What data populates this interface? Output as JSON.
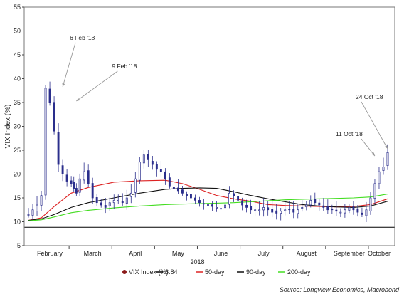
{
  "chart_data": {
    "type": "line",
    "title": "",
    "ylabel": "VIX Index (%)",
    "ylim": [
      5,
      55
    ],
    "yticks": [
      "5",
      "10",
      "15",
      "20",
      "25",
      "30",
      "35",
      "40",
      "45",
      "50",
      "55"
    ],
    "x_axis_year_label": "2018",
    "month_labels": [
      "February",
      "March",
      "April",
      "May",
      "June",
      "July",
      "August",
      "September",
      "October"
    ],
    "reference_line": {
      "name": "8.84",
      "value": 8.84,
      "color": "#000000"
    },
    "candle_color": "#2b2e8c",
    "series": [
      {
        "name": "VIX Index (%)",
        "color": "#2b2e8c",
        "x": [
          0.0,
          0.5,
          1.0,
          1.5,
          2.0,
          2.5,
          3.0,
          3.5,
          4.0,
          4.5,
          5.0,
          5.3,
          5.6,
          6.0,
          6.5,
          7.0,
          7.5,
          8.0,
          8.5,
          9.0,
          9.5,
          10.0,
          10.5,
          11.0,
          11.5,
          12.0,
          12.5,
          13.0,
          13.5,
          14.0,
          14.5,
          15.0,
          15.5,
          16.0,
          16.5,
          17.0,
          17.5,
          18.0,
          18.5,
          19.0,
          19.5,
          20.0,
          20.5,
          21.0,
          21.5,
          22.0,
          22.5,
          23.0,
          23.5,
          24.0,
          24.5,
          25.0,
          25.5,
          26.0,
          26.5,
          27.0,
          27.5,
          28.0,
          28.5,
          29.0,
          29.5,
          30.0,
          30.5,
          31.0,
          31.5,
          32.0,
          32.5,
          33.0,
          33.5,
          34.0,
          34.5,
          35.0,
          35.5,
          36.0,
          36.5,
          37.0,
          37.5,
          38.0,
          38.5,
          39.0,
          39.5,
          40.0,
          40.5,
          41.0,
          41.5,
          42.0
        ],
        "values": [
          11.5,
          12.5,
          13.5,
          15.5,
          38.0,
          35.0,
          29.0,
          22.0,
          20.0,
          18.5,
          18.0,
          17.0,
          16.0,
          19.0,
          20.5,
          18.0,
          15.0,
          14.0,
          13.5,
          13.0,
          14.0,
          14.5,
          14.5,
          14.0,
          15.0,
          16.0,
          19.0,
          22.5,
          24.0,
          23.0,
          22.0,
          21.0,
          20.5,
          19.0,
          17.5,
          17.0,
          16.5,
          16.0,
          15.5,
          15.0,
          14.5,
          14.0,
          13.8,
          13.5,
          13.2,
          13.0,
          12.8,
          13.5,
          16.0,
          15.5,
          14.5,
          13.5,
          13.0,
          12.5,
          12.5,
          12.5,
          13.0,
          12.5,
          12.0,
          11.8,
          12.2,
          12.5,
          12.6,
          12.0,
          12.5,
          13.0,
          13.5,
          14.5,
          14.0,
          13.5,
          13.0,
          12.5,
          12.5,
          12.2,
          12.0,
          12.5,
          13.0,
          12.5,
          12.0,
          11.5,
          12.5,
          15.0,
          18.0,
          20.5,
          21.5,
          24.5
        ],
        "marker": "candlestick"
      },
      {
        "name": "50-day",
        "color": "#dd2222",
        "x": [
          0,
          1.5,
          3,
          5,
          7,
          10,
          13,
          16,
          18,
          20,
          22,
          24,
          26,
          28,
          30,
          32,
          34,
          36,
          38,
          40,
          42
        ],
        "values": [
          10.3,
          10.8,
          13.2,
          16.0,
          17.2,
          18.3,
          18.6,
          18.7,
          18.0,
          16.8,
          15.5,
          14.8,
          14.3,
          13.6,
          13.4,
          13.3,
          13.2,
          13.1,
          13.2,
          13.6,
          14.8
        ]
      },
      {
        "name": "90-day",
        "color": "#111111",
        "x": [
          0,
          1.5,
          3,
          5,
          7,
          10,
          13,
          16,
          18,
          20,
          22,
          24,
          26,
          28,
          30,
          32,
          34,
          36,
          38,
          40,
          42
        ],
        "values": [
          10.3,
          10.6,
          11.5,
          13.0,
          14.0,
          15.0,
          16.0,
          16.8,
          17.0,
          17.1,
          17.0,
          16.3,
          15.5,
          14.8,
          14.2,
          13.6,
          13.3,
          13.1,
          13.0,
          13.3,
          14.3
        ]
      },
      {
        "name": "200-day",
        "color": "#44dd22",
        "x": [
          0,
          1.5,
          3,
          5,
          7,
          10,
          13,
          16,
          18,
          20,
          22,
          24,
          26,
          28,
          30,
          32,
          34,
          36,
          38,
          40,
          42
        ],
        "values": [
          10.2,
          10.4,
          11.0,
          11.9,
          12.4,
          12.9,
          13.3,
          13.6,
          13.7,
          13.8,
          13.9,
          14.0,
          14.2,
          14.4,
          14.6,
          14.7,
          14.8,
          14.9,
          15.0,
          15.2,
          15.8
        ]
      }
    ],
    "annotations": [
      {
        "text": "6 Feb '18",
        "x": 4.0,
        "y": 38.0
      },
      {
        "text": "9 Feb '18",
        "x": 5.6,
        "y": 35.0
      },
      {
        "text": "11 Oct '18",
        "x": 40.5,
        "y": 23.5
      },
      {
        "text": "24 Oct '18",
        "x": 42.0,
        "y": 25.0
      }
    ],
    "legend": {
      "position": "bottom",
      "items": [
        "VIX Index (%)",
        "8.84",
        "50-day",
        "90-day",
        "200-day"
      ]
    },
    "source": "Source: Longview Economics, Macrobond"
  }
}
